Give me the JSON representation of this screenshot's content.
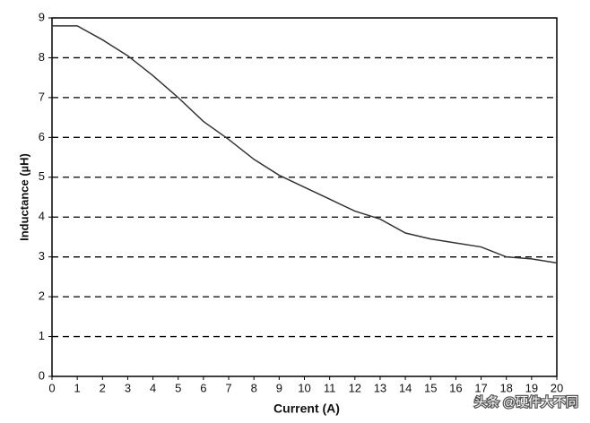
{
  "chart_data": {
    "type": "line",
    "x_label": "Current (A)",
    "y_label": "Inductance (µH)",
    "x": [
      0,
      1,
      2,
      3,
      4,
      5,
      6,
      7,
      8,
      9,
      10,
      11,
      12,
      13,
      14,
      15,
      16,
      17,
      18,
      19,
      20
    ],
    "series": [
      {
        "color": "#333333",
        "values": [
          8.8,
          8.8,
          8.45,
          8.05,
          7.55,
          7.0,
          6.4,
          5.95,
          5.45,
          5.05,
          4.75,
          4.45,
          4.15,
          3.95,
          3.6,
          3.45,
          3.35,
          3.25,
          3.0,
          2.95,
          2.85
        ]
      }
    ],
    "xlim": [
      0,
      20
    ],
    "xticks": [
      0,
      1,
      2,
      3,
      4,
      5,
      6,
      7,
      8,
      9,
      10,
      11,
      12,
      13,
      14,
      15,
      16,
      17,
      18,
      19,
      20
    ],
    "ylim": [
      0,
      9
    ],
    "yticks": [
      0,
      1,
      2,
      3,
      4,
      5,
      6,
      7,
      8,
      9
    ],
    "grid": true,
    "grid_style": "dashed",
    "watermark": "头条 @硬件大不同"
  }
}
